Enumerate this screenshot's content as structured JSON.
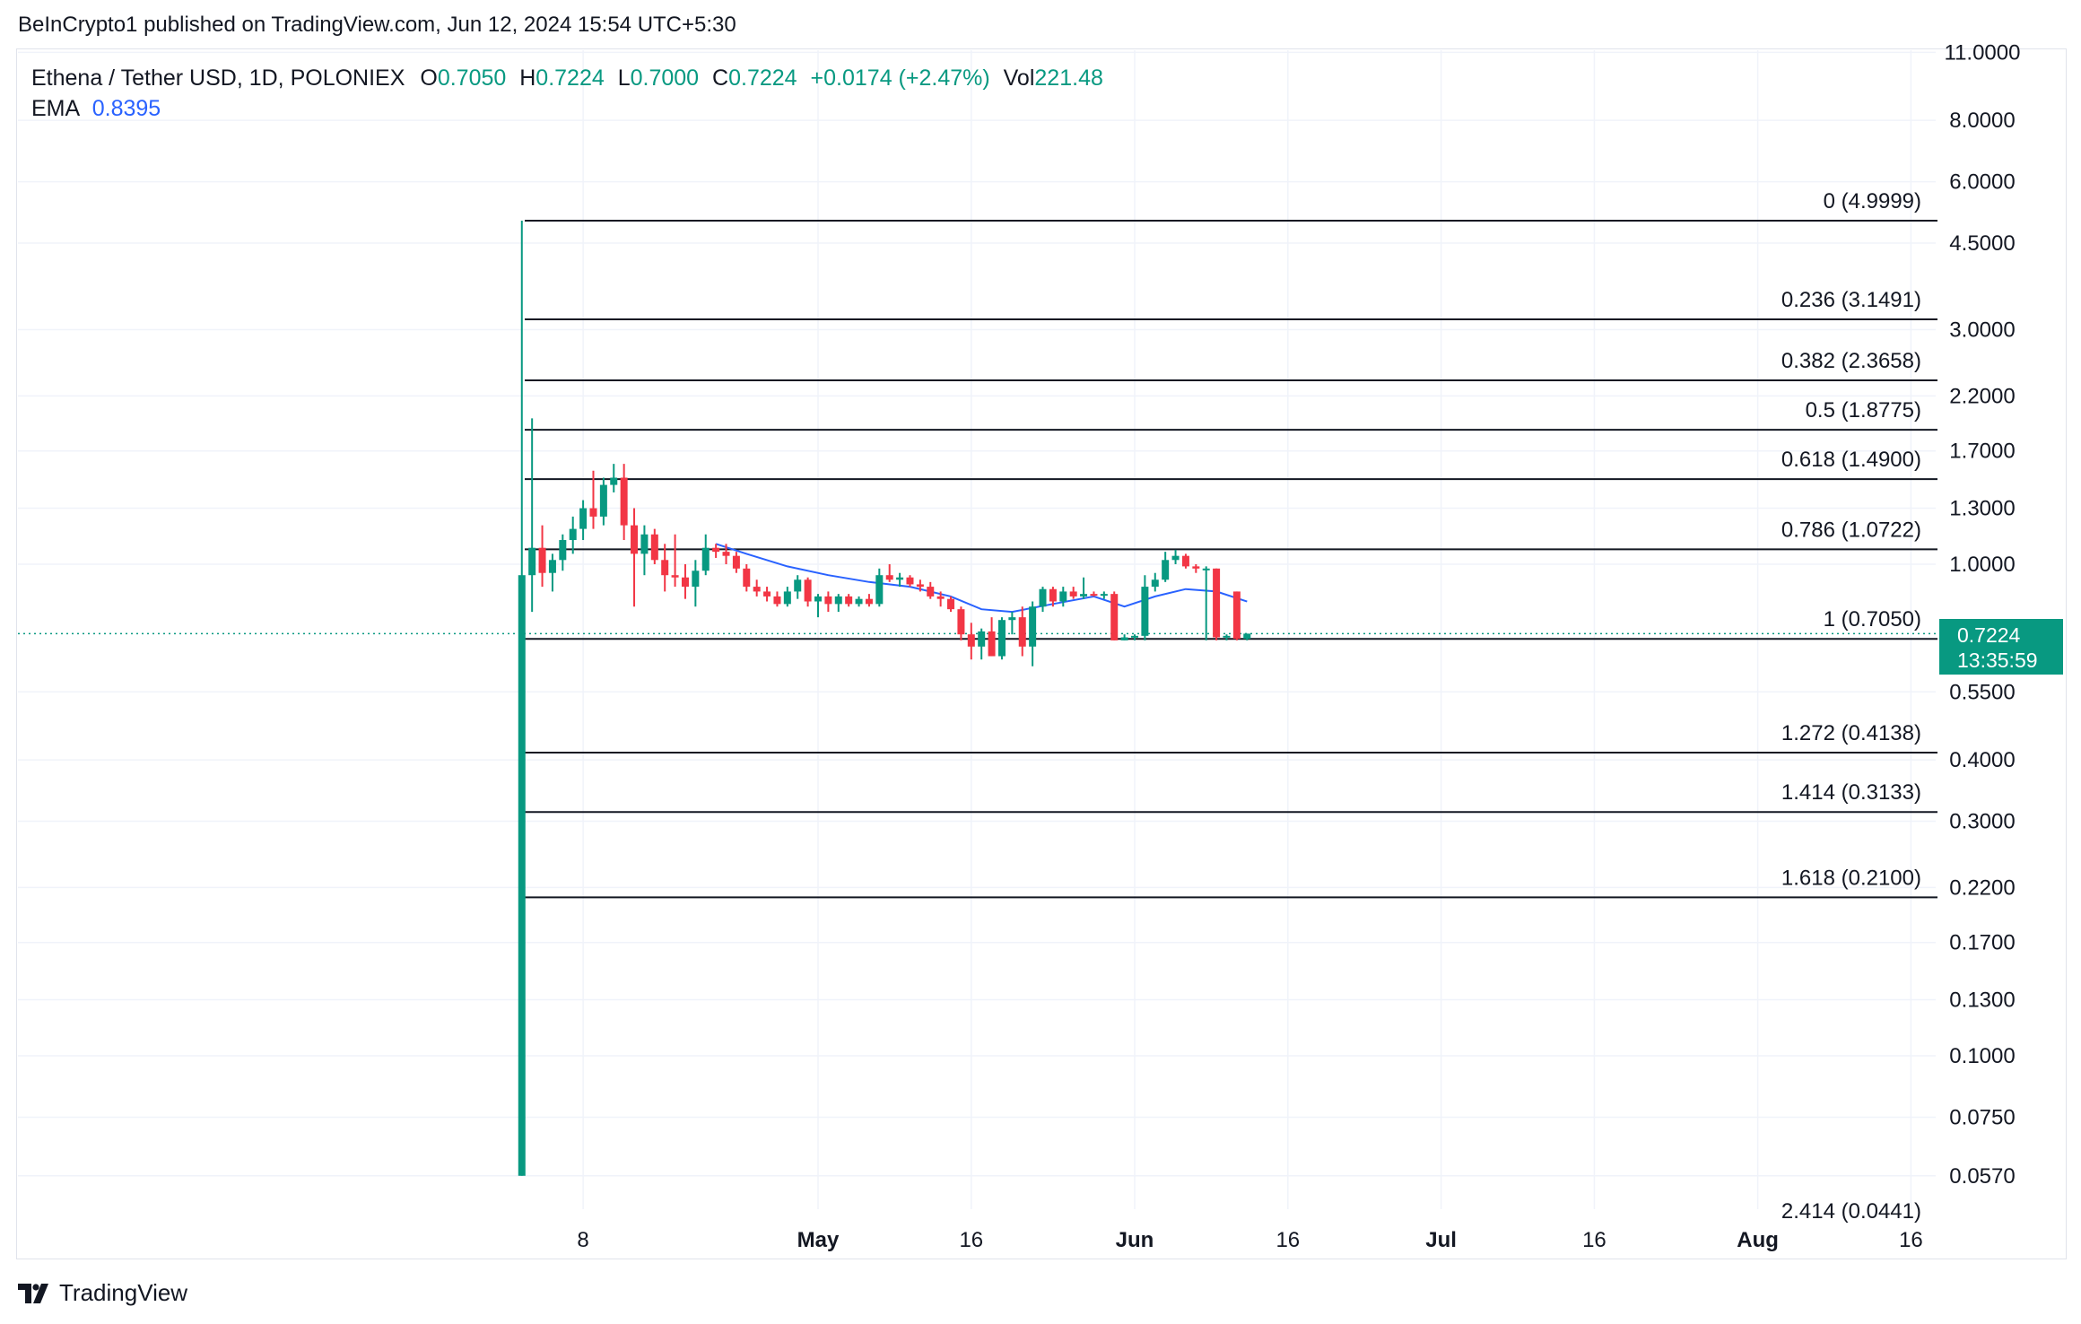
{
  "caption": "BeInCrypto1 published on TradingView.com, Jun 12, 2024 15:54 UTC+5:30",
  "legend": {
    "symbol": "Ethena / Tether USD, 1D, POLONIEX",
    "open_key": "O",
    "open": "0.7050",
    "high_key": "H",
    "high": "0.7224",
    "low_key": "L",
    "low": "0.7000",
    "close_key": "C",
    "close": "0.7224",
    "change": "+0.0174 (+2.47%)",
    "vol_key": "Vol",
    "vol": "221.48",
    "ema_key": "EMA",
    "ema": "0.8395"
  },
  "price_tag": {
    "price": "0.7224",
    "countdown": "13:35:59"
  },
  "footer": {
    "brand": "TradingView"
  },
  "colors": {
    "up": "#089981",
    "down": "#f23645",
    "ema": "#2962ff",
    "grid": "#f0f3fa",
    "fib_line": "#131722"
  },
  "chart_data": {
    "type": "candlestick",
    "y_scale": "log",
    "y_ticks": [
      {
        "value": 11,
        "label": "11.0000"
      },
      {
        "value": 8,
        "label": "8.0000"
      },
      {
        "value": 6,
        "label": "6.0000"
      },
      {
        "value": 4.5,
        "label": "4.5000"
      },
      {
        "value": 3,
        "label": "3.0000"
      },
      {
        "value": 2.2,
        "label": "2.2000"
      },
      {
        "value": 1.7,
        "label": "1.7000"
      },
      {
        "value": 1.3,
        "label": "1.3000"
      },
      {
        "value": 1,
        "label": "1.0000"
      },
      {
        "value": 0.55,
        "label": "0.5500"
      },
      {
        "value": 0.4,
        "label": "0.4000"
      },
      {
        "value": 0.3,
        "label": "0.3000"
      },
      {
        "value": 0.22,
        "label": "0.2200"
      },
      {
        "value": 0.17,
        "label": "0.1700"
      },
      {
        "value": 0.13,
        "label": "0.1300"
      },
      {
        "value": 0.1,
        "label": "0.1000"
      },
      {
        "value": 0.075,
        "label": "0.0750"
      },
      {
        "value": 0.057,
        "label": "0.0570"
      }
    ],
    "x_ticks": [
      {
        "date": "2024-04-08",
        "label": "8"
      },
      {
        "date": "2024-05-01",
        "label": "May"
      },
      {
        "date": "2024-05-16",
        "label": "16"
      },
      {
        "date": "2024-06-01",
        "label": "Jun"
      },
      {
        "date": "2024-06-16",
        "label": "16"
      },
      {
        "date": "2024-07-01",
        "label": "Jul"
      },
      {
        "date": "2024-07-16",
        "label": "16"
      },
      {
        "date": "2024-08-01",
        "label": "Aug"
      },
      {
        "date": "2024-08-16",
        "label": "16"
      }
    ],
    "x_bold_labels": [
      "May",
      "Jun",
      "Jul",
      "Aug"
    ],
    "x_range": [
      "2024-03-19",
      "2024-08-19"
    ],
    "fib_levels": [
      {
        "ratio": "0",
        "price": 4.9999,
        "label": "0 (4.9999)"
      },
      {
        "ratio": "0.236",
        "price": 3.1491,
        "label": "0.236 (3.1491)"
      },
      {
        "ratio": "0.382",
        "price": 2.3658,
        "label": "0.382 (2.3658)"
      },
      {
        "ratio": "0.5",
        "price": 1.8775,
        "label": "0.5 (1.8775)"
      },
      {
        "ratio": "0.618",
        "price": 1.49,
        "label": "0.618 (1.4900)"
      },
      {
        "ratio": "0.786",
        "price": 1.0722,
        "label": "0.786 (1.0722)"
      },
      {
        "ratio": "1",
        "price": 0.705,
        "label": "1 (0.7050)"
      },
      {
        "ratio": "1.272",
        "price": 0.4138,
        "label": "1.272 (0.4138)"
      },
      {
        "ratio": "1.414",
        "price": 0.3133,
        "label": "1.414 (0.3133)"
      },
      {
        "ratio": "1.618",
        "price": 0.21,
        "label": "1.618 (0.2100)"
      },
      {
        "ratio": "2.414",
        "price": 0.0441,
        "label": "2.414 (0.0441)"
      }
    ],
    "current_price": 0.7224,
    "candles": [
      {
        "date": "2024-04-02",
        "open": 0.057,
        "high": 5.0,
        "low": 0.057,
        "close": 0.95
      },
      {
        "date": "2024-04-03",
        "open": 0.95,
        "high": 1.98,
        "low": 0.8,
        "close": 1.08
      },
      {
        "date": "2024-04-04",
        "open": 1.08,
        "high": 1.2,
        "low": 0.9,
        "close": 0.96
      },
      {
        "date": "2024-04-05",
        "open": 0.96,
        "high": 1.05,
        "low": 0.88,
        "close": 1.02
      },
      {
        "date": "2024-04-06",
        "open": 1.02,
        "high": 1.15,
        "low": 0.97,
        "close": 1.12
      },
      {
        "date": "2024-04-07",
        "open": 1.12,
        "high": 1.25,
        "low": 1.05,
        "close": 1.18
      },
      {
        "date": "2024-04-08",
        "open": 1.18,
        "high": 1.35,
        "low": 1.12,
        "close": 1.3
      },
      {
        "date": "2024-04-09",
        "open": 1.3,
        "high": 1.55,
        "low": 1.18,
        "close": 1.25
      },
      {
        "date": "2024-04-10",
        "open": 1.25,
        "high": 1.5,
        "low": 1.2,
        "close": 1.45
      },
      {
        "date": "2024-04-11",
        "open": 1.45,
        "high": 1.6,
        "low": 1.4,
        "close": 1.5
      },
      {
        "date": "2024-04-12",
        "open": 1.5,
        "high": 1.6,
        "low": 1.12,
        "close": 1.2
      },
      {
        "date": "2024-04-13",
        "open": 1.2,
        "high": 1.3,
        "low": 0.82,
        "close": 1.05
      },
      {
        "date": "2024-04-14",
        "open": 1.05,
        "high": 1.2,
        "low": 0.95,
        "close": 1.15
      },
      {
        "date": "2024-04-15",
        "open": 1.15,
        "high": 1.18,
        "low": 1.0,
        "close": 1.02
      },
      {
        "date": "2024-04-16",
        "open": 1.02,
        "high": 1.1,
        "low": 0.88,
        "close": 0.95
      },
      {
        "date": "2024-04-17",
        "open": 0.95,
        "high": 1.15,
        "low": 0.9,
        "close": 0.94
      },
      {
        "date": "2024-04-18",
        "open": 0.94,
        "high": 1.0,
        "low": 0.85,
        "close": 0.9
      },
      {
        "date": "2024-04-19",
        "open": 0.9,
        "high": 1.02,
        "low": 0.82,
        "close": 0.97
      },
      {
        "date": "2024-04-20",
        "open": 0.97,
        "high": 1.15,
        "low": 0.95,
        "close": 1.08
      },
      {
        "date": "2024-04-21",
        "open": 1.08,
        "high": 1.1,
        "low": 1.03,
        "close": 1.06
      },
      {
        "date": "2024-04-22",
        "open": 1.06,
        "high": 1.1,
        "low": 1.0,
        "close": 1.04
      },
      {
        "date": "2024-04-23",
        "open": 1.04,
        "high": 1.06,
        "low": 0.96,
        "close": 0.98
      },
      {
        "date": "2024-04-24",
        "open": 0.98,
        "high": 1.0,
        "low": 0.88,
        "close": 0.9
      },
      {
        "date": "2024-04-25",
        "open": 0.9,
        "high": 0.93,
        "low": 0.86,
        "close": 0.88
      },
      {
        "date": "2024-04-26",
        "open": 0.88,
        "high": 0.9,
        "low": 0.84,
        "close": 0.86
      },
      {
        "date": "2024-04-27",
        "open": 0.86,
        "high": 0.88,
        "low": 0.82,
        "close": 0.83
      },
      {
        "date": "2024-04-28",
        "open": 0.83,
        "high": 0.9,
        "low": 0.82,
        "close": 0.88
      },
      {
        "date": "2024-04-29",
        "open": 0.88,
        "high": 0.95,
        "low": 0.85,
        "close": 0.93
      },
      {
        "date": "2024-04-30",
        "open": 0.93,
        "high": 0.94,
        "low": 0.82,
        "close": 0.84
      },
      {
        "date": "2024-05-01",
        "open": 0.84,
        "high": 0.87,
        "low": 0.78,
        "close": 0.86
      },
      {
        "date": "2024-05-02",
        "open": 0.86,
        "high": 0.88,
        "low": 0.8,
        "close": 0.83
      },
      {
        "date": "2024-05-03",
        "open": 0.83,
        "high": 0.87,
        "low": 0.8,
        "close": 0.86
      },
      {
        "date": "2024-05-04",
        "open": 0.86,
        "high": 0.87,
        "low": 0.82,
        "close": 0.83
      },
      {
        "date": "2024-05-05",
        "open": 0.83,
        "high": 0.86,
        "low": 0.82,
        "close": 0.85
      },
      {
        "date": "2024-05-06",
        "open": 0.85,
        "high": 0.87,
        "low": 0.82,
        "close": 0.83
      },
      {
        "date": "2024-05-07",
        "open": 0.83,
        "high": 0.98,
        "low": 0.82,
        "close": 0.95
      },
      {
        "date": "2024-05-08",
        "open": 0.95,
        "high": 1.0,
        "low": 0.92,
        "close": 0.93
      },
      {
        "date": "2024-05-09",
        "open": 0.93,
        "high": 0.96,
        "low": 0.9,
        "close": 0.94
      },
      {
        "date": "2024-05-10",
        "open": 0.94,
        "high": 0.95,
        "low": 0.9,
        "close": 0.91
      },
      {
        "date": "2024-05-11",
        "open": 0.91,
        "high": 0.93,
        "low": 0.88,
        "close": 0.9
      },
      {
        "date": "2024-05-12",
        "open": 0.9,
        "high": 0.92,
        "low": 0.85,
        "close": 0.86
      },
      {
        "date": "2024-05-13",
        "open": 0.86,
        "high": 0.88,
        "low": 0.82,
        "close": 0.85
      },
      {
        "date": "2024-05-14",
        "open": 0.85,
        "high": 0.86,
        "low": 0.8,
        "close": 0.81
      },
      {
        "date": "2024-05-15",
        "open": 0.81,
        "high": 0.82,
        "low": 0.7,
        "close": 0.72
      },
      {
        "date": "2024-05-16",
        "open": 0.72,
        "high": 0.76,
        "low": 0.64,
        "close": 0.68
      },
      {
        "date": "2024-05-17",
        "open": 0.68,
        "high": 0.74,
        "low": 0.64,
        "close": 0.73
      },
      {
        "date": "2024-05-18",
        "open": 0.73,
        "high": 0.78,
        "low": 0.65,
        "close": 0.65
      },
      {
        "date": "2024-05-19",
        "open": 0.65,
        "high": 0.78,
        "low": 0.64,
        "close": 0.77
      },
      {
        "date": "2024-05-20",
        "open": 0.77,
        "high": 0.8,
        "low": 0.72,
        "close": 0.78
      },
      {
        "date": "2024-05-21",
        "open": 0.78,
        "high": 0.82,
        "low": 0.65,
        "close": 0.68
      },
      {
        "date": "2024-05-22",
        "open": 0.68,
        "high": 0.84,
        "low": 0.62,
        "close": 0.82
      },
      {
        "date": "2024-05-23",
        "open": 0.82,
        "high": 0.9,
        "low": 0.8,
        "close": 0.89
      },
      {
        "date": "2024-05-24",
        "open": 0.89,
        "high": 0.9,
        "low": 0.82,
        "close": 0.84
      },
      {
        "date": "2024-05-25",
        "open": 0.84,
        "high": 0.9,
        "low": 0.82,
        "close": 0.88
      },
      {
        "date": "2024-05-26",
        "open": 0.88,
        "high": 0.9,
        "low": 0.85,
        "close": 0.86
      },
      {
        "date": "2024-05-27",
        "open": 0.86,
        "high": 0.94,
        "low": 0.85,
        "close": 0.87
      },
      {
        "date": "2024-05-28",
        "open": 0.87,
        "high": 0.88,
        "low": 0.86,
        "close": 0.865
      },
      {
        "date": "2024-05-29",
        "open": 0.865,
        "high": 0.88,
        "low": 0.85,
        "close": 0.87
      },
      {
        "date": "2024-05-30",
        "open": 0.87,
        "high": 0.88,
        "low": 0.7,
        "close": 0.7
      },
      {
        "date": "2024-05-31",
        "open": 0.7,
        "high": 0.72,
        "low": 0.7,
        "close": 0.71
      },
      {
        "date": "2024-06-01",
        "open": 0.71,
        "high": 0.72,
        "low": 0.7,
        "close": 0.715
      },
      {
        "date": "2024-06-02",
        "open": 0.715,
        "high": 0.95,
        "low": 0.7,
        "close": 0.9
      },
      {
        "date": "2024-06-03",
        "open": 0.9,
        "high": 0.96,
        "low": 0.88,
        "close": 0.93
      },
      {
        "date": "2024-06-04",
        "open": 0.93,
        "high": 1.06,
        "low": 0.92,
        "close": 1.02
      },
      {
        "date": "2024-06-05",
        "open": 1.02,
        "high": 1.07,
        "low": 1.0,
        "close": 1.04
      },
      {
        "date": "2024-06-06",
        "open": 1.04,
        "high": 1.05,
        "low": 0.98,
        "close": 0.99
      },
      {
        "date": "2024-06-07",
        "open": 0.99,
        "high": 1.0,
        "low": 0.96,
        "close": 0.98
      },
      {
        "date": "2024-06-08",
        "open": 0.98,
        "high": 0.99,
        "low": 0.7,
        "close": 0.98
      },
      {
        "date": "2024-06-09",
        "open": 0.98,
        "high": 0.98,
        "low": 0.7,
        "close": 0.71
      },
      {
        "date": "2024-06-10",
        "open": 0.71,
        "high": 0.72,
        "low": 0.7,
        "close": 0.715
      },
      {
        "date": "2024-06-11",
        "open": 0.88,
        "high": 0.88,
        "low": 0.7,
        "close": 0.705
      },
      {
        "date": "2024-06-12",
        "open": 0.705,
        "high": 0.7224,
        "low": 0.7,
        "close": 0.7224
      }
    ],
    "ema_series": [
      {
        "date": "2024-04-21",
        "value": 1.1
      },
      {
        "date": "2024-04-24",
        "value": 1.05
      },
      {
        "date": "2024-04-28",
        "value": 0.99
      },
      {
        "date": "2024-05-02",
        "value": 0.95
      },
      {
        "date": "2024-05-06",
        "value": 0.92
      },
      {
        "date": "2024-05-10",
        "value": 0.9
      },
      {
        "date": "2024-05-14",
        "value": 0.86
      },
      {
        "date": "2024-05-17",
        "value": 0.81
      },
      {
        "date": "2024-05-20",
        "value": 0.8
      },
      {
        "date": "2024-05-24",
        "value": 0.83
      },
      {
        "date": "2024-05-28",
        "value": 0.86
      },
      {
        "date": "2024-05-31",
        "value": 0.82
      },
      {
        "date": "2024-06-03",
        "value": 0.86
      },
      {
        "date": "2024-06-06",
        "value": 0.89
      },
      {
        "date": "2024-06-09",
        "value": 0.88
      },
      {
        "date": "2024-06-12",
        "value": 0.8395
      }
    ]
  }
}
